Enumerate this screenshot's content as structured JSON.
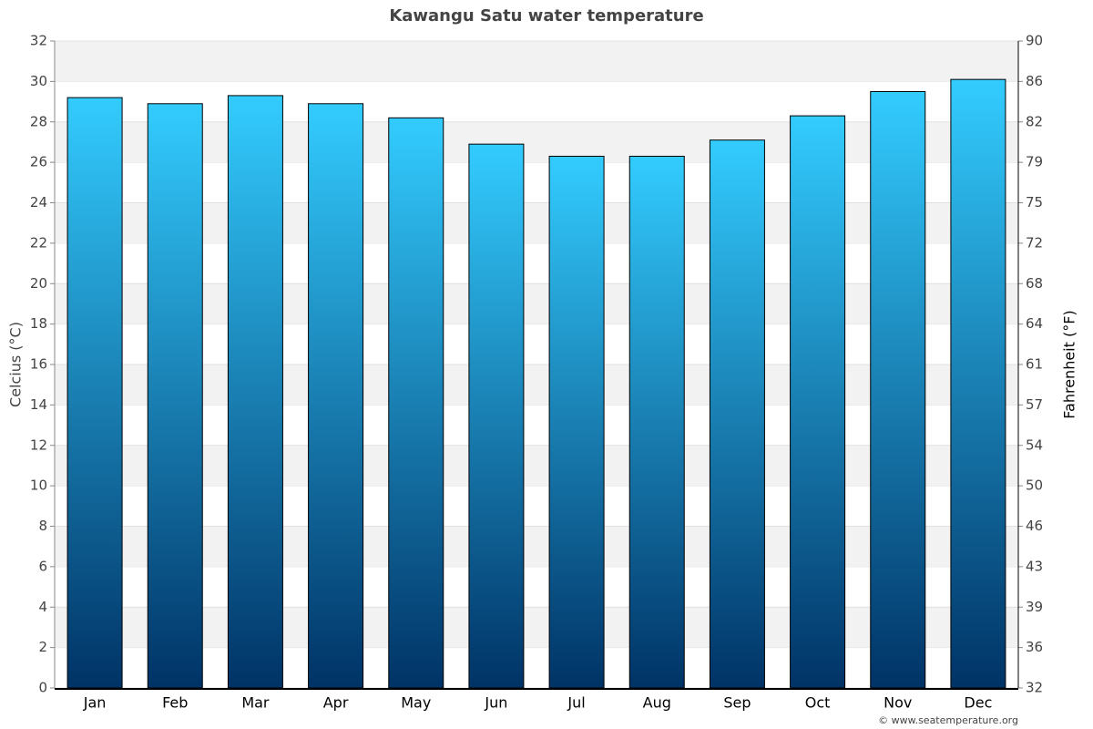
{
  "chart_data": {
    "type": "bar",
    "title": "Kawangu Satu water temperature",
    "categories": [
      "Jan",
      "Feb",
      "Mar",
      "Apr",
      "May",
      "Jun",
      "Jul",
      "Aug",
      "Sep",
      "Oct",
      "Nov",
      "Dec"
    ],
    "values": [
      29.2,
      28.9,
      29.3,
      28.9,
      28.2,
      26.9,
      26.3,
      26.3,
      27.1,
      28.3,
      29.5,
      30.1
    ],
    "gradient": [
      "#33ccff",
      "#003366"
    ],
    "ylabel": "Celcius (°C)",
    "y2label": "Fahrenheit (°F)",
    "ylim": [
      0,
      32
    ],
    "yticks": [
      0,
      2,
      4,
      6,
      8,
      10,
      12,
      14,
      16,
      18,
      20,
      22,
      24,
      26,
      28,
      30,
      32
    ],
    "y2lim": [
      32,
      89.6
    ],
    "y2ticks": [
      32,
      {
        "value": 35.6,
        "label": "36"
      },
      {
        "value": 39.2,
        "label": "39"
      },
      {
        "value": 42.8,
        "label": "43"
      },
      {
        "value": 46.4,
        "label": "46"
      },
      50,
      {
        "value": 53.6,
        "label": "54"
      },
      {
        "value": 57.2,
        "label": "57"
      },
      {
        "value": 60.8,
        "label": "61"
      },
      {
        "value": 64.4,
        "label": "64"
      },
      68,
      {
        "value": 71.6,
        "label": "72"
      },
      {
        "value": 75.2,
        "label": "75"
      },
      {
        "value": 78.8,
        "label": "79"
      },
      {
        "value": 82.4,
        "label": "82"
      },
      86,
      {
        "value": 89.6,
        "label": "90"
      }
    ],
    "grid": true,
    "credit": "© www.seatemperature.org"
  }
}
